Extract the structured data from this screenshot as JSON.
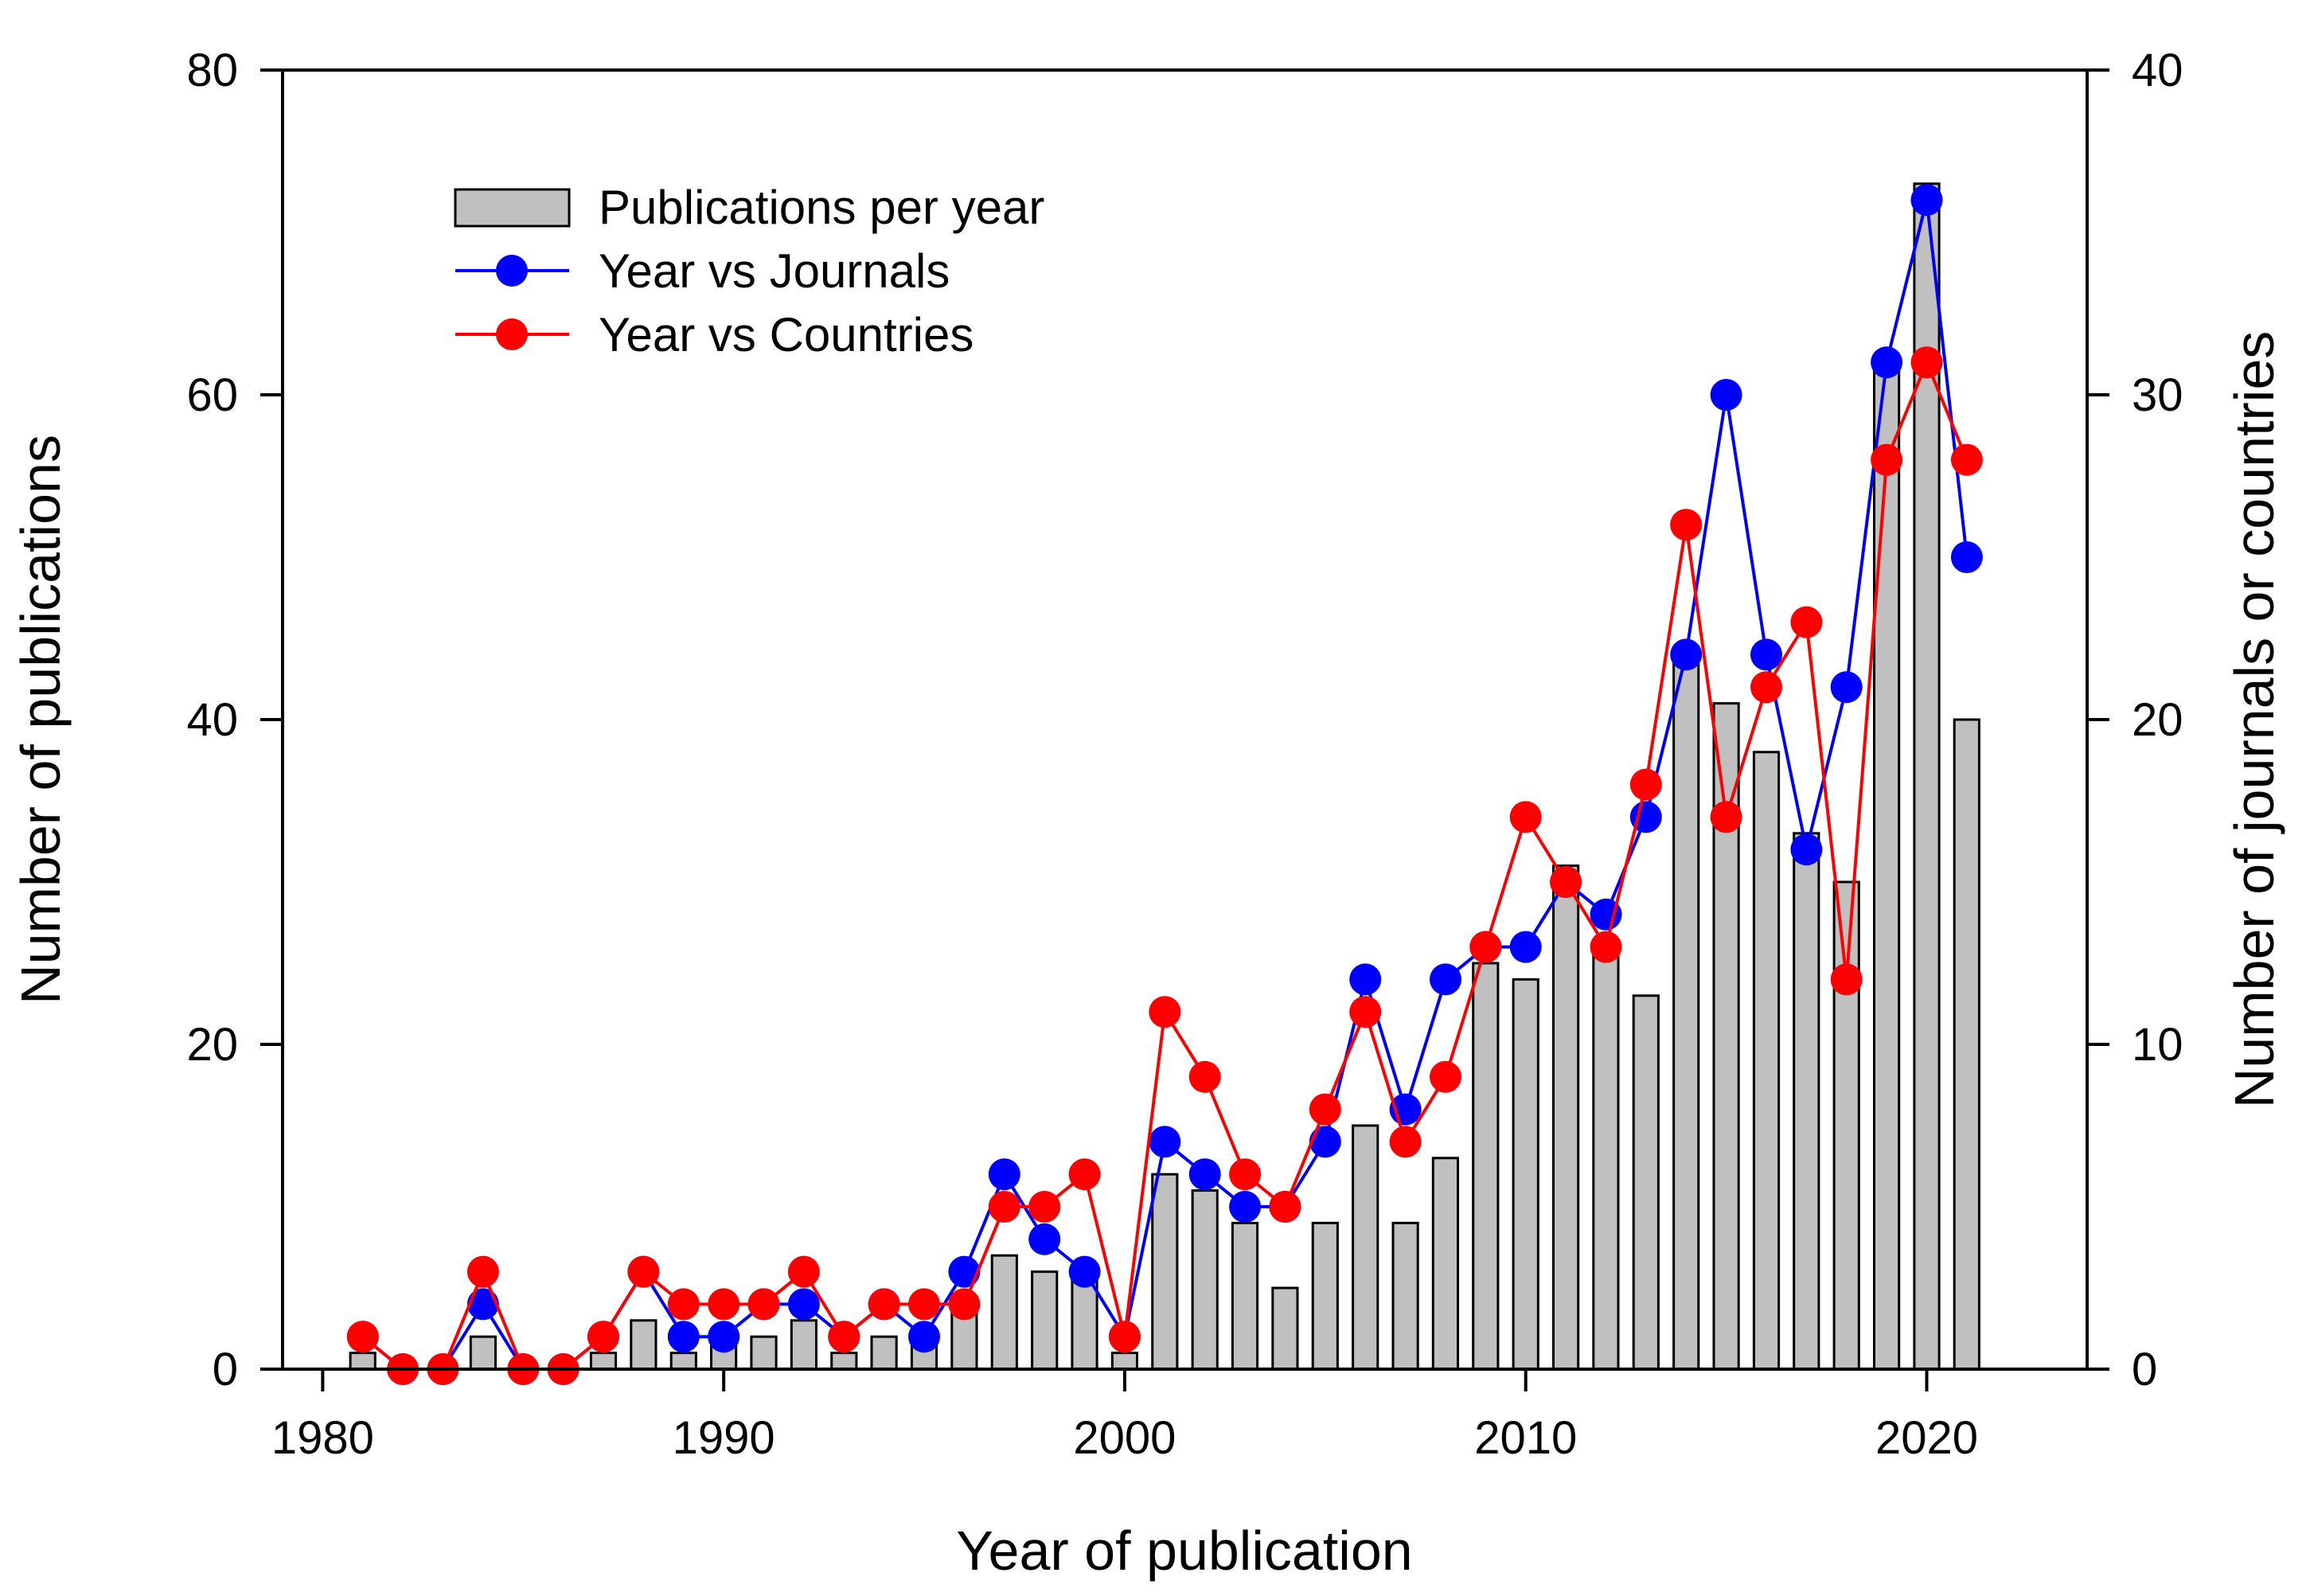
{
  "chart_data": {
    "type": "bar+line",
    "x": [
      1981,
      1982,
      1983,
      1984,
      1985,
      1986,
      1987,
      1988,
      1989,
      1990,
      1991,
      1992,
      1993,
      1994,
      1995,
      1996,
      1997,
      1998,
      1999,
      2000,
      2001,
      2002,
      2003,
      2004,
      2005,
      2006,
      2007,
      2008,
      2009,
      2010,
      2011,
      2012,
      2013,
      2014,
      2015,
      2016,
      2017,
      2018,
      2019,
      2020,
      2021
    ],
    "xlim": [
      1979,
      2024
    ],
    "xticks": [
      "1980",
      "1990",
      "2000",
      "2010",
      "2020"
    ],
    "xlabel": "Year of publication",
    "ylabel": "Number of publications",
    "y2label": "Number of journals or countries",
    "ylim": [
      0,
      80
    ],
    "y2lim": [
      0,
      40
    ],
    "yticks": [
      "0",
      "20",
      "40",
      "60",
      "80"
    ],
    "y2ticks": [
      "0",
      "10",
      "20",
      "30",
      "40"
    ],
    "series": [
      {
        "name": "Publications per year",
        "kind": "bar",
        "axis": "left",
        "color": "#c0c0c0",
        "values": [
          1,
          0,
          0,
          2,
          0,
          0,
          1,
          3,
          1,
          2,
          2,
          3,
          1,
          2,
          2,
          4,
          7,
          6,
          6,
          1,
          12,
          11,
          9,
          5,
          9,
          15,
          9,
          13,
          25,
          24,
          31,
          26,
          23,
          44,
          41,
          38,
          33,
          30,
          62,
          73,
          40
        ]
      },
      {
        "name": "Year vs Journals",
        "kind": "line",
        "axis": "right",
        "color": "#0000ff",
        "values": [
          1,
          0,
          0,
          2,
          0,
          0,
          1,
          3,
          1,
          1,
          2,
          2,
          1,
          2,
          1,
          3,
          6,
          4,
          3,
          1,
          7,
          6,
          5,
          5,
          7,
          12,
          8,
          12,
          13,
          13,
          15,
          14,
          17,
          22,
          30,
          22,
          16,
          21,
          31,
          36,
          25
        ]
      },
      {
        "name": "Year vs Countries",
        "kind": "line",
        "axis": "right",
        "color": "#ff0000",
        "values": [
          1,
          0,
          0,
          3,
          0,
          0,
          1,
          3,
          2,
          2,
          2,
          3,
          1,
          2,
          2,
          2,
          5,
          5,
          6,
          1,
          11,
          9,
          6,
          5,
          8,
          11,
          7,
          9,
          13,
          17,
          15,
          13,
          18,
          26,
          17,
          21,
          23,
          12,
          28,
          31,
          28
        ]
      }
    ],
    "legend_position": "top-left"
  }
}
